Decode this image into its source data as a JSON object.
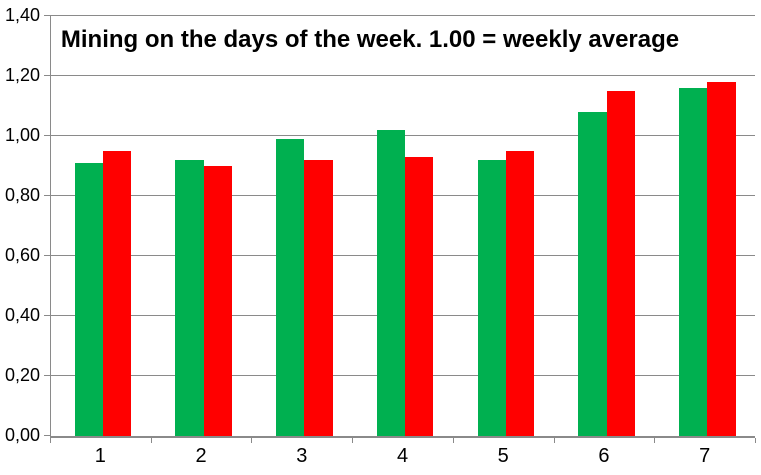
{
  "chart_data": {
    "type": "bar",
    "title": "Mining on the days of the week. 1.00 = weekly average",
    "categories": [
      "1",
      "2",
      "3",
      "4",
      "5",
      "6",
      "7"
    ],
    "series": [
      {
        "name": "green",
        "color": "#00B050",
        "values": [
          0.91,
          0.92,
          0.99,
          1.02,
          0.92,
          1.08,
          1.16
        ]
      },
      {
        "name": "red",
        "color": "#FF0000",
        "values": [
          0.95,
          0.9,
          0.92,
          0.93,
          0.95,
          1.15,
          1.18
        ]
      }
    ],
    "xlabel": "",
    "ylabel": "",
    "ylim": [
      0.0,
      1.4
    ],
    "ytick_step": 0.2,
    "ytick_labels": [
      "0,00",
      "0,20",
      "0,40",
      "0,60",
      "0,80",
      "1,00",
      "1,20",
      "1,40"
    ],
    "decimal_separator": ",",
    "grid": true,
    "legend_position": "none",
    "colors": {
      "background": "#FFFFFF",
      "gridline": "#8A8A8A",
      "axis": "#8A8A8A",
      "text": "#000000",
      "title": "#000000"
    }
  }
}
